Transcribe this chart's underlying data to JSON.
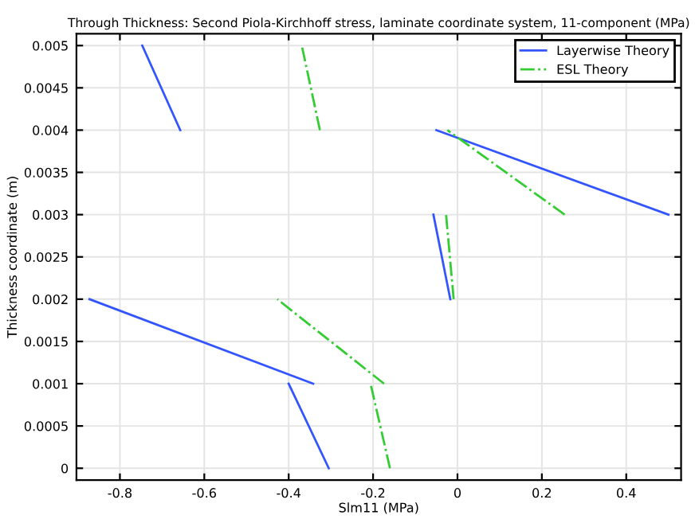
{
  "chart_data": {
    "type": "line",
    "title": "Through Thickness: Second Piola-Kirchhoff stress, laminate coordinate system, 11-component (MPa)",
    "xlabel": "Slm11 (MPa)",
    "ylabel": "Thickness coordinate (m)",
    "series": [
      {
        "name": "Layerwise Theory",
        "color": "#3355ff",
        "line_style": "solid",
        "x": [
          -0.305,
          -0.4,
          null,
          -0.342,
          -0.872,
          null,
          -0.017,
          -0.057,
          null,
          0.5,
          -0.05,
          null,
          -0.657,
          -0.747
        ],
        "values": [
          0,
          0.001,
          null,
          0.001,
          0.002,
          null,
          0.002,
          0.003,
          null,
          0.003,
          0.004,
          null,
          0.004,
          0.005
        ]
      },
      {
        "name": "ESL Theory",
        "color": "#33cc33",
        "line_style": "dashed",
        "x": [
          -0.16,
          -0.206,
          null,
          -0.174,
          -0.427,
          null,
          -0.009,
          -0.027,
          null,
          0.254,
          -0.024,
          null,
          -0.326,
          -0.369
        ],
        "values": [
          0,
          0.001,
          null,
          0.001,
          0.002,
          null,
          0.002,
          0.003,
          null,
          0.003,
          0.004,
          null,
          0.004,
          0.005
        ]
      }
    ],
    "xlim": [
      -0.903,
      0.53
    ],
    "ylim": [
      -0.00014,
      0.00514
    ],
    "xticks": [
      -0.8,
      -0.6,
      -0.4,
      -0.2,
      0,
      0.2,
      0.4
    ],
    "yticks": [
      0,
      0.0005,
      0.001,
      0.0015,
      0.002,
      0.0025,
      0.003,
      0.0035,
      0.004,
      0.0045,
      0.005
    ],
    "grid": true,
    "legend": "top right"
  }
}
